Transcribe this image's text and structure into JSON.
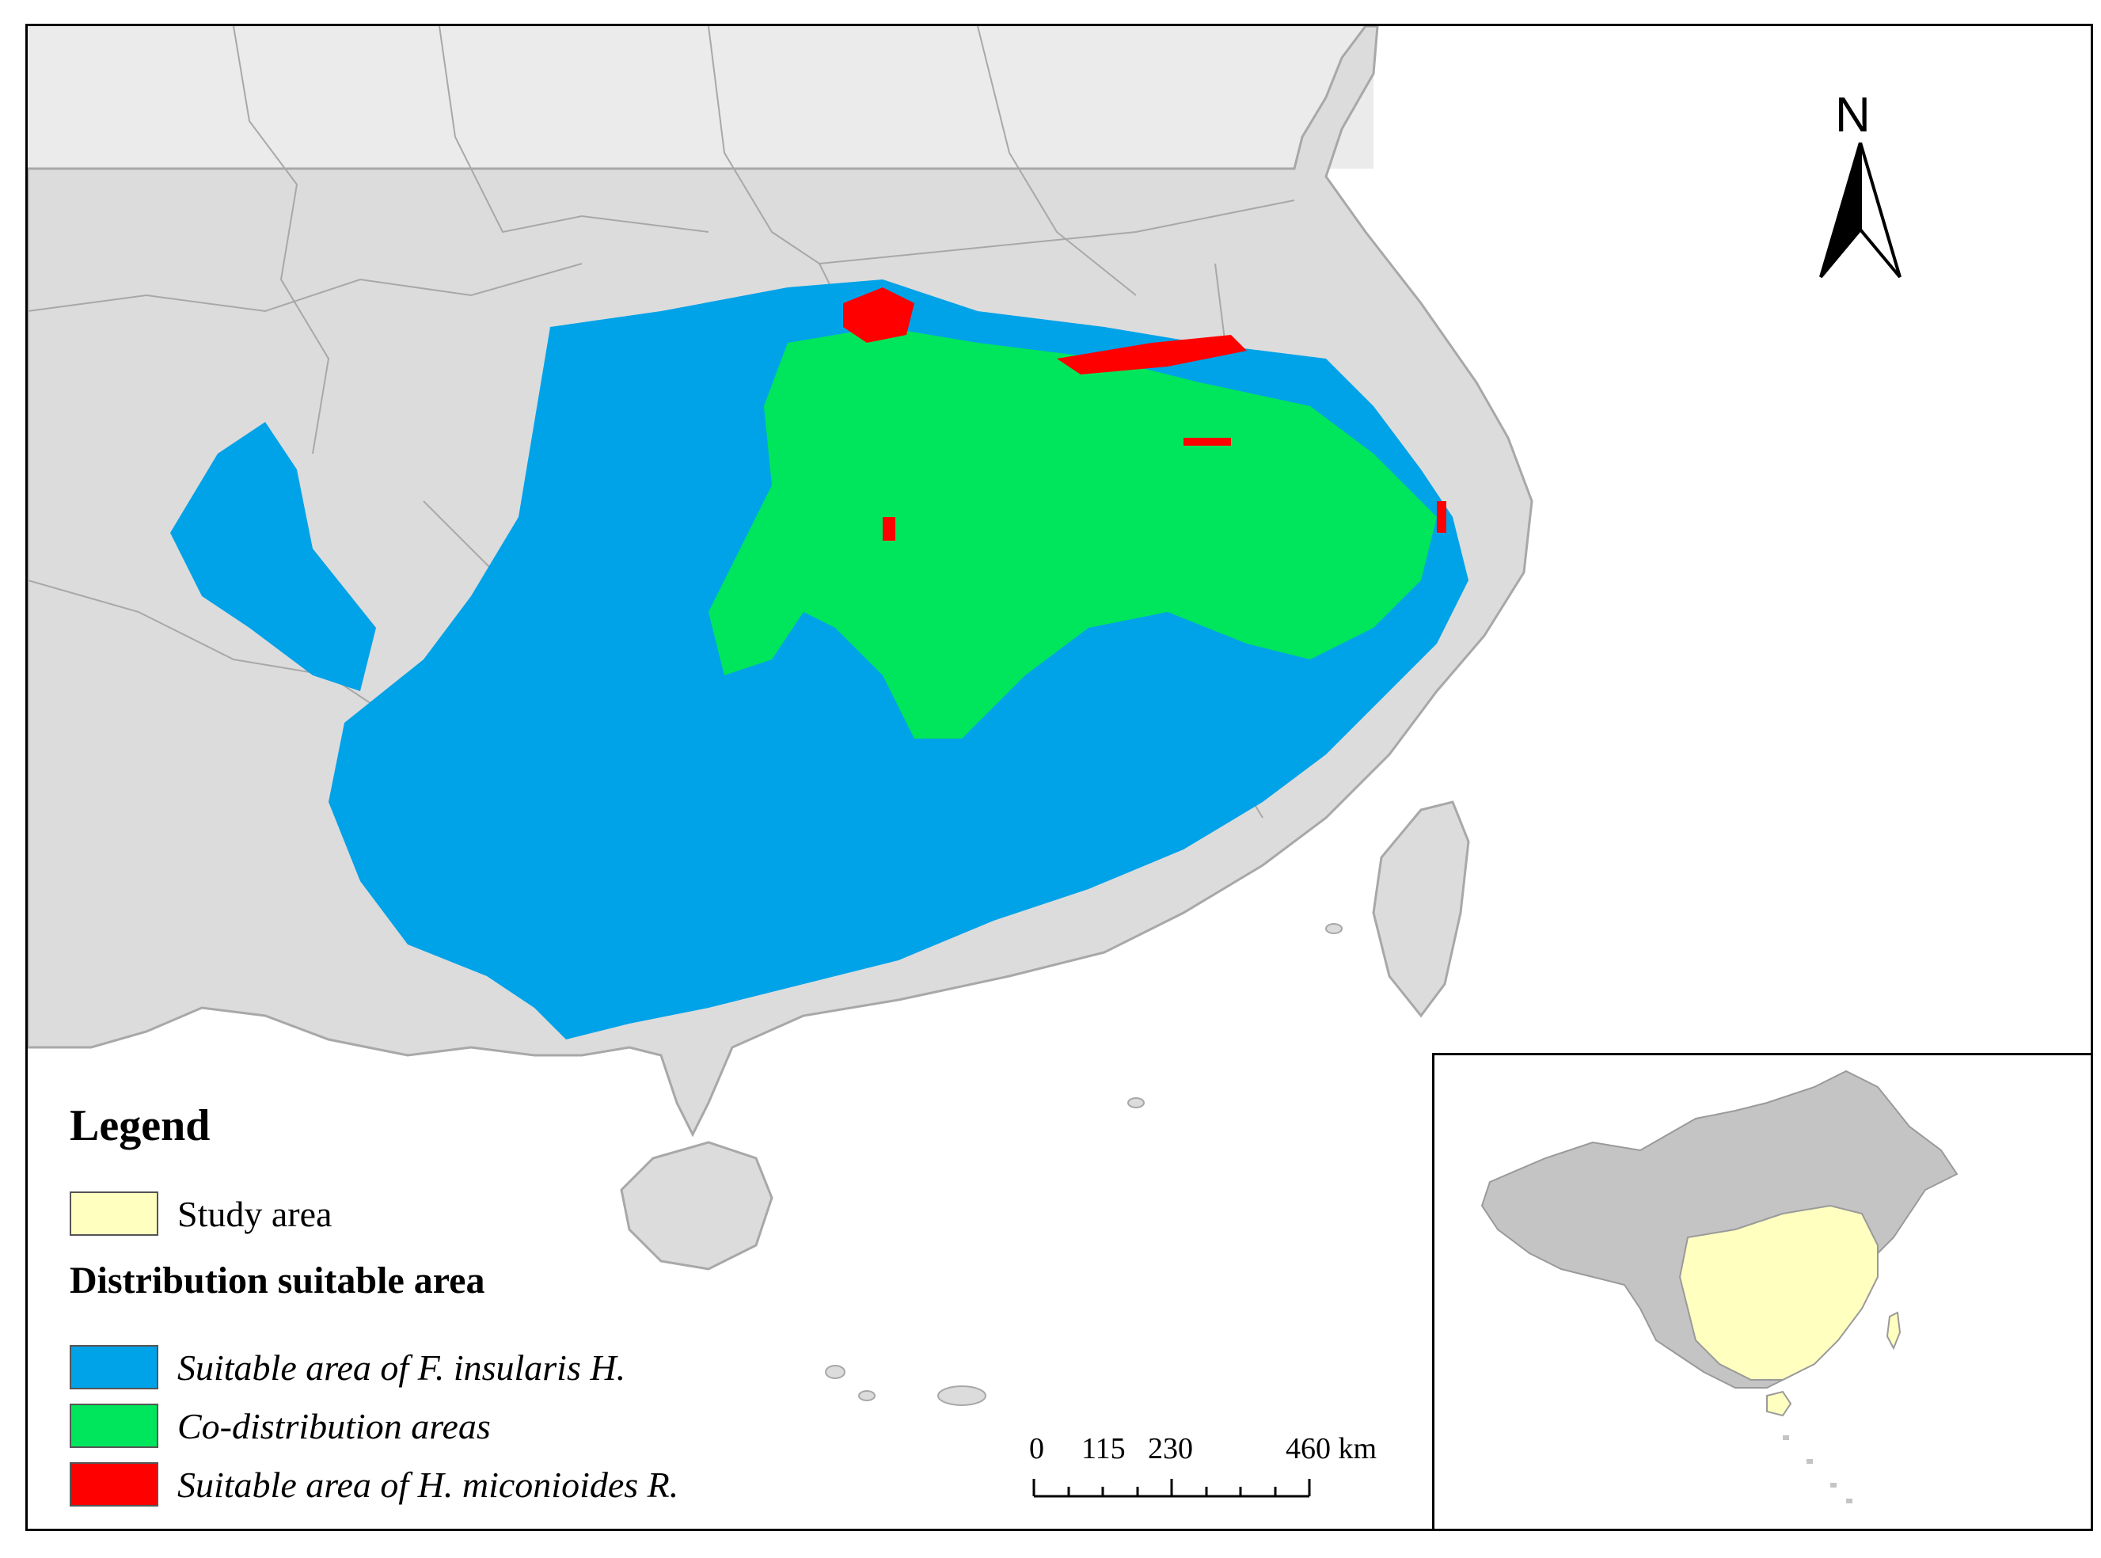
{
  "legend": {
    "title": "Legend",
    "study_area_label": "Study area",
    "section_title": "Distribution suitable area",
    "items": [
      {
        "label": "Suitable area of F. insularis H.",
        "color": "#00a2e8"
      },
      {
        "label": "Co-distribution areas",
        "color": "#00e65c"
      },
      {
        "label": "Suitable area of H. miconioides R.",
        "color": "#ff0000"
      }
    ],
    "study_area_color": "#ffffc0"
  },
  "north_arrow": {
    "label": "N"
  },
  "scale_bar": {
    "ticks": [
      "0",
      "115",
      "230",
      "460 km"
    ]
  },
  "colors": {
    "land": "#dcdcdc",
    "land_north": "#ebebeb",
    "boundary": "#a8a8a8",
    "inset_land": "#c4c4c4",
    "inset_study": "#ffffc0"
  }
}
